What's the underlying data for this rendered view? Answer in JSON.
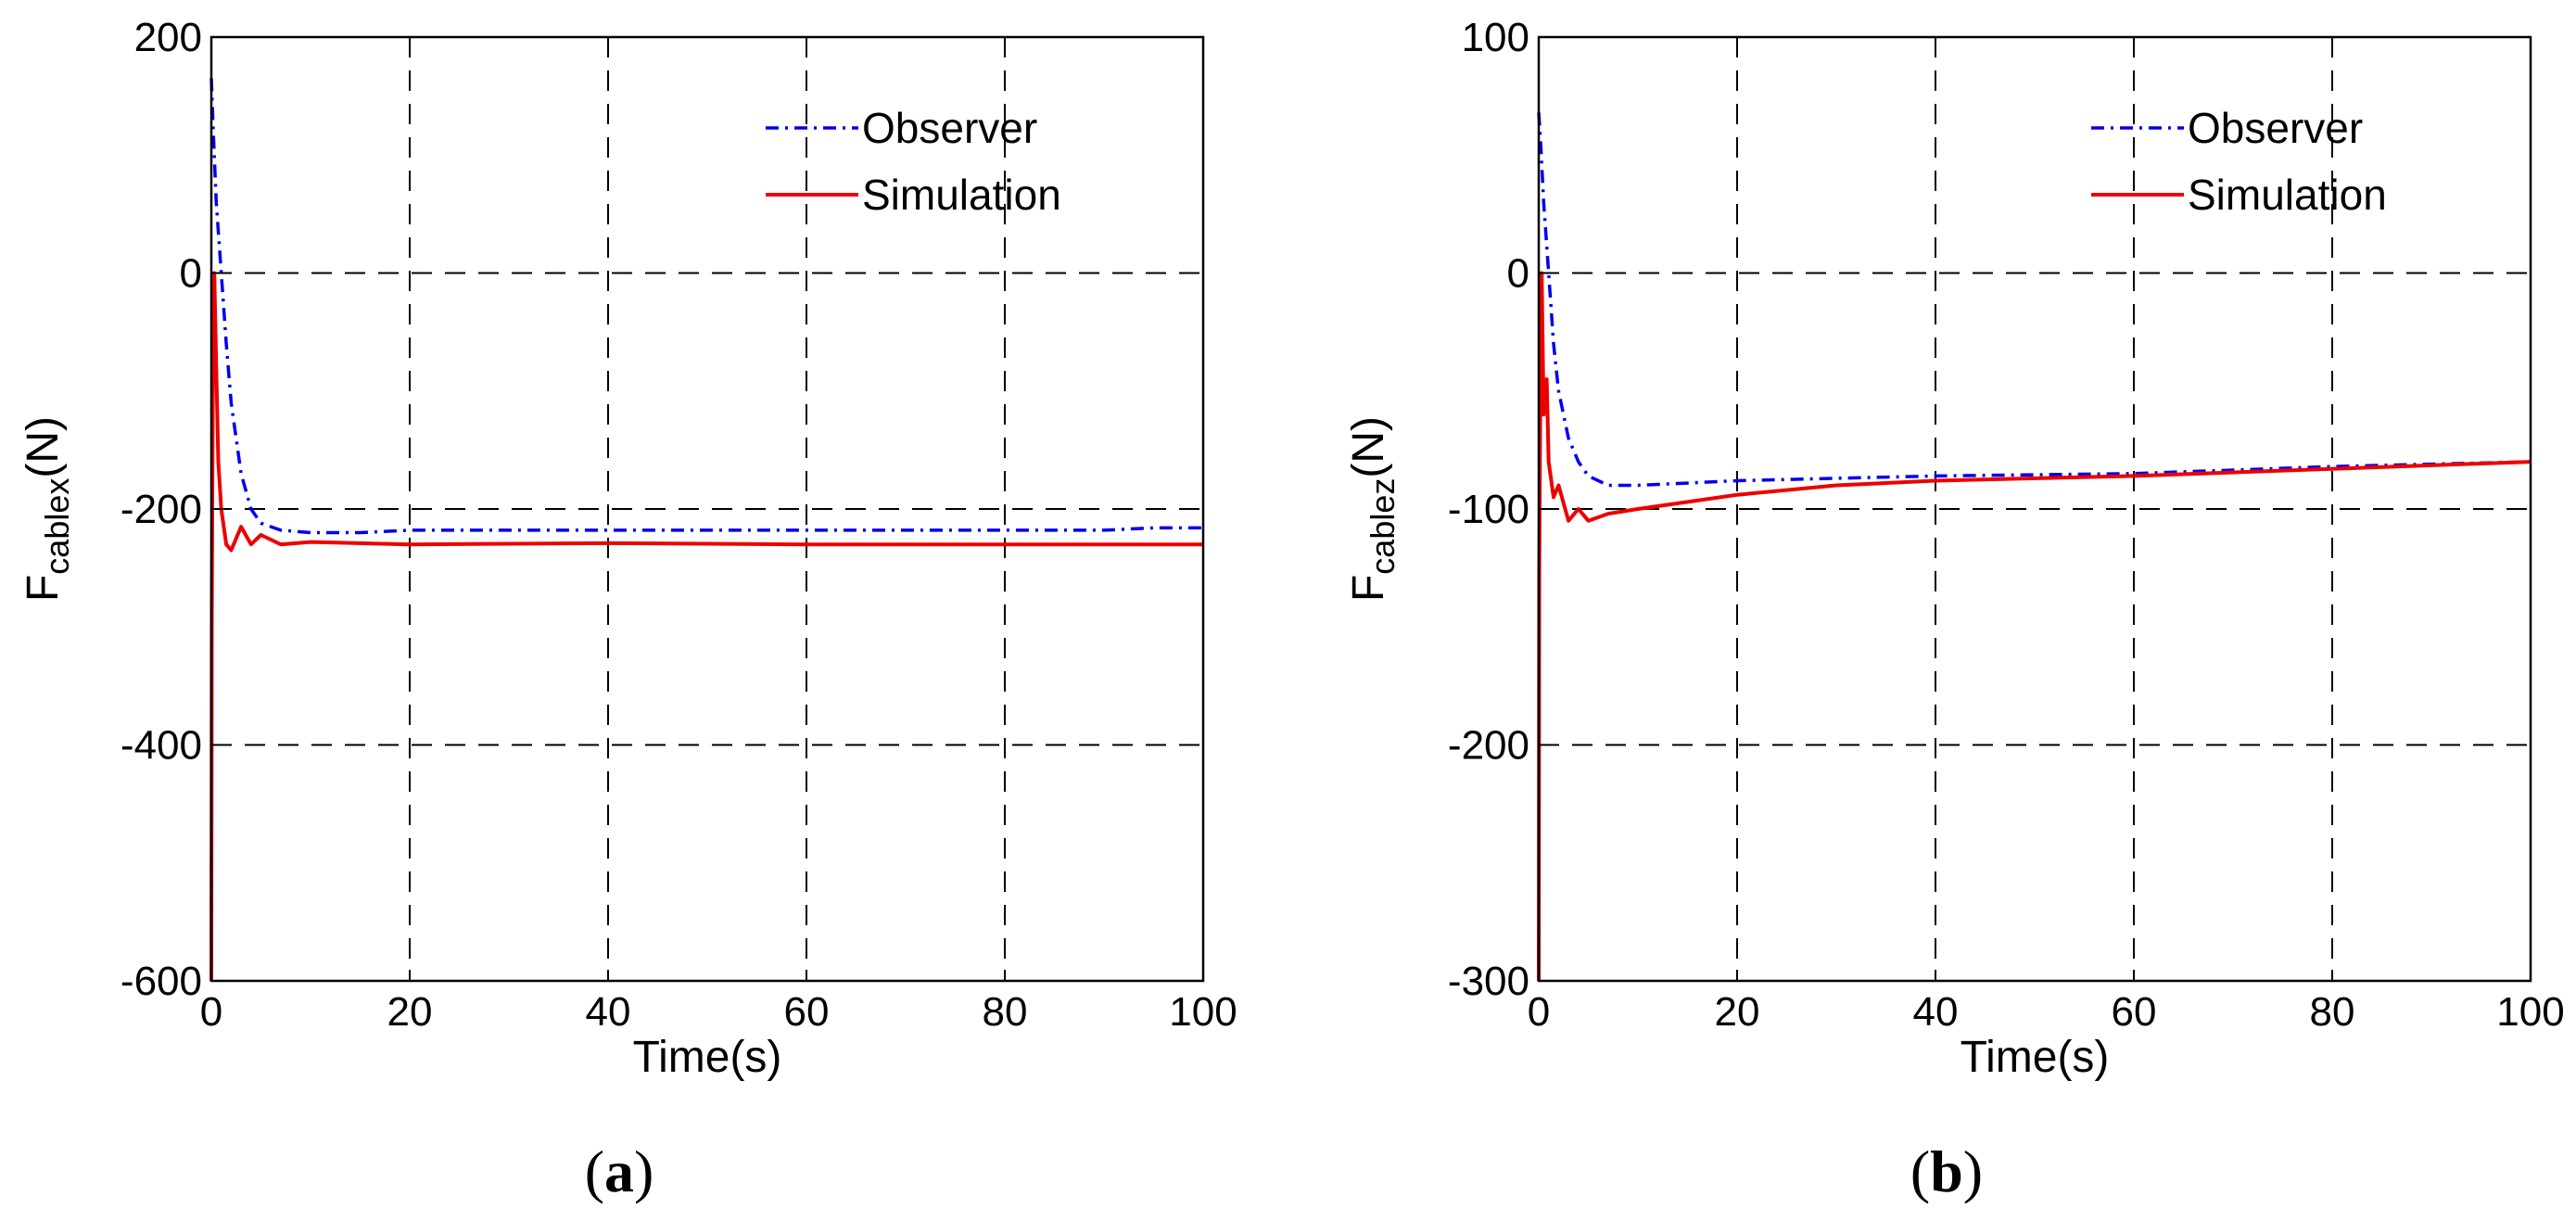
{
  "chart_data": [
    {
      "type": "line",
      "panel_label": "a",
      "xlabel": "Time(s)",
      "ylabel_main": "F",
      "ylabel_sub": "cablex",
      "ylabel_unit": "(N)",
      "xlim": [
        0,
        100
      ],
      "ylim": [
        -600,
        200
      ],
      "xticks": [
        0,
        20,
        40,
        60,
        80,
        100
      ],
      "yticks": [
        -600,
        -400,
        -200,
        0,
        200
      ],
      "grid": true,
      "legend_position": "top-right",
      "series": [
        {
          "name": "Observer",
          "color": "#0000ee",
          "style": "dashdot",
          "x": [
            0,
            0.2,
            0.5,
            1,
            1.5,
            2,
            3,
            4,
            5,
            7,
            10,
            15,
            20,
            30,
            40,
            60,
            80,
            90,
            95,
            100
          ],
          "y": [
            165,
            120,
            60,
            0,
            -60,
            -110,
            -170,
            -200,
            -212,
            -218,
            -220,
            -220,
            -218,
            -218,
            -218,
            -218,
            -218,
            -218,
            -216,
            -216
          ]
        },
        {
          "name": "Simulation",
          "color": "#ee0000",
          "style": "solid",
          "x": [
            0,
            0.05,
            0.15,
            0.3,
            0.5,
            0.7,
            1,
            1.5,
            2,
            3,
            4,
            5,
            7,
            10,
            20,
            40,
            60,
            80,
            100
          ],
          "y": [
            -600,
            -290,
            -100,
            0,
            -80,
            -160,
            -200,
            -230,
            -235,
            -215,
            -230,
            -222,
            -230,
            -228,
            -230,
            -229,
            -230,
            -230,
            -230
          ]
        }
      ]
    },
    {
      "type": "line",
      "panel_label": "b",
      "xlabel": "Time(s)",
      "ylabel_main": "F",
      "ylabel_sub": "cablez",
      "ylabel_unit": "(N)",
      "xlim": [
        0,
        100
      ],
      "ylim": [
        -300,
        100
      ],
      "xticks": [
        0,
        20,
        40,
        60,
        80,
        100
      ],
      "yticks": [
        -300,
        -200,
        -100,
        0,
        100
      ],
      "grid": true,
      "legend_position": "top-right",
      "series": [
        {
          "name": "Observer",
          "color": "#0000ee",
          "style": "dashdot",
          "x": [
            0,
            0.2,
            0.5,
            1,
            1.5,
            2,
            3,
            4,
            5,
            7,
            10,
            20,
            30,
            40,
            60,
            80,
            100
          ],
          "y": [
            68,
            55,
            30,
            0,
            -30,
            -50,
            -70,
            -80,
            -86,
            -90,
            -90,
            -88,
            -87,
            -86,
            -85,
            -82,
            -80
          ]
        },
        {
          "name": "Simulation",
          "color": "#ee0000",
          "style": "solid",
          "x": [
            0,
            0.05,
            0.15,
            0.3,
            0.5,
            0.8,
            1,
            1.5,
            2,
            3,
            4,
            5,
            7,
            10,
            15,
            20,
            30,
            40,
            60,
            80,
            100
          ],
          "y": [
            -300,
            -130,
            -60,
            0,
            -60,
            -45,
            -80,
            -95,
            -90,
            -105,
            -100,
            -105,
            -102,
            -100,
            -97,
            -94,
            -90,
            -88,
            -86,
            -83,
            -80
          ]
        }
      ]
    }
  ]
}
